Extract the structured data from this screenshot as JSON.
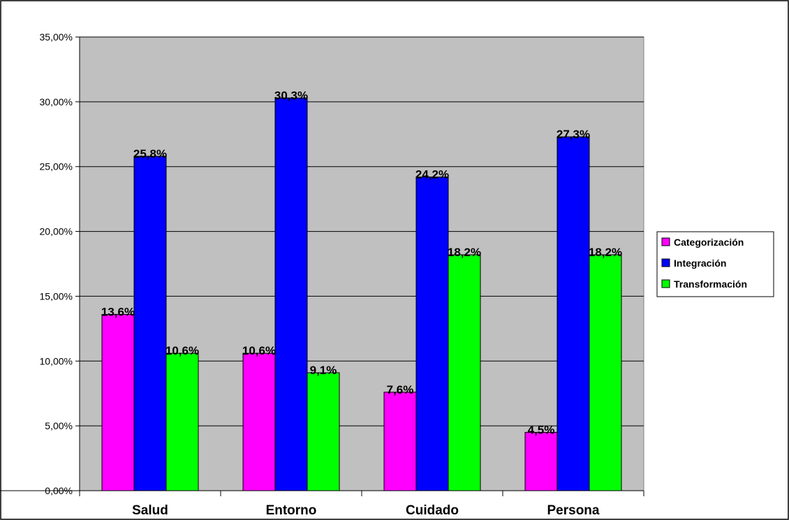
{
  "chart_data": {
    "type": "bar",
    "categories": [
      "Salud",
      "Entorno",
      "Cuidado",
      "Persona"
    ],
    "series": [
      {
        "name": "Categorización",
        "color": "#ff00ff",
        "values": [
          13.6,
          10.6,
          7.6,
          4.5
        ],
        "labels": [
          "13,6%",
          "10,6%",
          "7,6%",
          "4,5%"
        ]
      },
      {
        "name": "Integración",
        "color": "#0000ff",
        "values": [
          25.8,
          30.3,
          24.2,
          27.3
        ],
        "labels": [
          "25,8%",
          "30,3%",
          "24,2%",
          "27,3%"
        ]
      },
      {
        "name": "Transformación",
        "color": "#00ff00",
        "values": [
          10.6,
          9.1,
          18.2,
          18.2
        ],
        "labels": [
          "10,6%",
          "9,1%",
          "18,2%",
          "18,2%"
        ]
      }
    ],
    "yticks": [
      0,
      5,
      10,
      15,
      20,
      25,
      30,
      35
    ],
    "ytick_labels": [
      "0,00%",
      "5,00%",
      "10,00%",
      "15,00%",
      "20,00%",
      "25,00%",
      "30,00%",
      "35,00%"
    ],
    "ylim": [
      0,
      35
    ],
    "plot_background": "#c0c0c0",
    "grid": true,
    "legend_position": "right",
    "title": "",
    "xlabel": "",
    "ylabel": ""
  }
}
